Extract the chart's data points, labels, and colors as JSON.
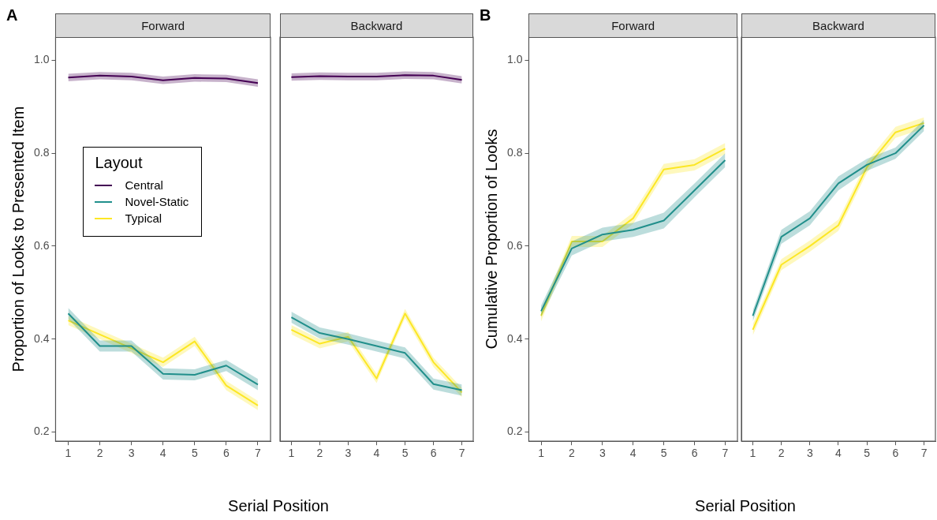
{
  "chart_data": [
    {
      "type": "line",
      "title": "Forward",
      "xlabel": "Serial Position",
      "ylabel": "Proportion of Looks to Presented Item",
      "legend_title": "Layout",
      "legend": "left",
      "annotations": [
        "A"
      ],
      "x": [
        1,
        2,
        3,
        4,
        5,
        6,
        7
      ],
      "xlim": [
        0.6,
        7.4
      ],
      "xticks": [
        1,
        2,
        3,
        4,
        5,
        6,
        7
      ],
      "ylim": [
        0.18,
        1.05
      ],
      "yticks": [
        {
          "value": 0.2,
          "label": "0.2"
        },
        {
          "value": 0.4,
          "label": "0.4"
        },
        {
          "value": 0.6,
          "label": "0.6"
        },
        {
          "value": 0.8,
          "label": "0.8"
        },
        {
          "value": 1,
          "label": "1.0"
        }
      ],
      "series": [
        {
          "name": "Central",
          "color": "#440154",
          "values": [
            0.963,
            0.967,
            0.965,
            0.957,
            0.962,
            0.961,
            0.951
          ],
          "lower": [
            0.955,
            0.959,
            0.957,
            0.949,
            0.954,
            0.953,
            0.943
          ],
          "upper": [
            0.971,
            0.975,
            0.973,
            0.965,
            0.97,
            0.969,
            0.959
          ]
        },
        {
          "name": "Novel-Static",
          "color": "#21908c",
          "values": [
            0.455,
            0.385,
            0.385,
            0.325,
            0.323,
            0.343,
            0.302
          ],
          "lower": [
            0.443,
            0.373,
            0.373,
            0.313,
            0.311,
            0.331,
            0.29
          ],
          "upper": [
            0.467,
            0.397,
            0.397,
            0.337,
            0.335,
            0.355,
            0.314
          ]
        },
        {
          "name": "Typical",
          "color": "#fde725",
          "values": [
            0.44,
            0.41,
            0.38,
            0.35,
            0.395,
            0.3,
            0.257
          ],
          "lower": [
            0.43,
            0.4,
            0.37,
            0.34,
            0.385,
            0.29,
            0.247
          ],
          "upper": [
            0.45,
            0.42,
            0.39,
            0.36,
            0.405,
            0.31,
            0.267
          ]
        }
      ]
    },
    {
      "type": "line",
      "title": "Backward",
      "tick_labels": "x",
      "x": [
        1,
        2,
        3,
        4,
        5,
        6,
        7
      ],
      "xlim": [
        0.6,
        7.4
      ],
      "xticks": [
        1,
        2,
        3,
        4,
        5,
        6,
        7
      ],
      "ylim": [
        0.18,
        1.05
      ],
      "series": [
        {
          "color": "#440154",
          "values": [
            0.964,
            0.966,
            0.965,
            0.965,
            0.968,
            0.967,
            0.958
          ],
          "lower": [
            0.956,
            0.958,
            0.957,
            0.957,
            0.96,
            0.959,
            0.95
          ],
          "upper": [
            0.972,
            0.974,
            0.973,
            0.973,
            0.976,
            0.975,
            0.966
          ]
        },
        {
          "color": "#21908c",
          "values": [
            0.447,
            0.413,
            0.4,
            0.385,
            0.37,
            0.303,
            0.29
          ],
          "lower": [
            0.435,
            0.401,
            0.388,
            0.373,
            0.358,
            0.291,
            0.278
          ],
          "upper": [
            0.459,
            0.425,
            0.412,
            0.397,
            0.382,
            0.315,
            0.302
          ]
        },
        {
          "color": "#fde725",
          "values": [
            0.42,
            0.39,
            0.405,
            0.315,
            0.455,
            0.35,
            0.285
          ],
          "lower": [
            0.41,
            0.38,
            0.395,
            0.305,
            0.445,
            0.34,
            0.275
          ],
          "upper": [
            0.43,
            0.4,
            0.415,
            0.325,
            0.465,
            0.36,
            0.295
          ]
        }
      ]
    },
    {
      "type": "line",
      "title": "Forward",
      "xlabel": "Serial Position",
      "ylabel": "Cumulative Proportion of Looks",
      "annotations": [
        "B"
      ],
      "x": [
        1,
        2,
        3,
        4,
        5,
        6,
        7
      ],
      "xlim": [
        0.6,
        7.4
      ],
      "xticks": [
        1,
        2,
        3,
        4,
        5,
        6,
        7
      ],
      "ylim": [
        0.18,
        1.05
      ],
      "yticks": [
        {
          "value": 0.2,
          "label": "0.2"
        },
        {
          "value": 0.4,
          "label": "0.4"
        },
        {
          "value": 0.6,
          "label": "0.6"
        },
        {
          "value": 0.8,
          "label": "0.8"
        },
        {
          "value": 1,
          "label": "1.0"
        }
      ],
      "series": [
        {
          "color": "#21908c",
          "values": [
            0.46,
            0.595,
            0.625,
            0.635,
            0.655,
            0.72,
            0.785
          ],
          "lower": [
            0.448,
            0.58,
            0.61,
            0.62,
            0.638,
            0.705,
            0.77
          ],
          "upper": [
            0.472,
            0.61,
            0.64,
            0.65,
            0.672,
            0.735,
            0.8
          ]
        },
        {
          "color": "#fde725",
          "values": [
            0.45,
            0.61,
            0.61,
            0.66,
            0.765,
            0.775,
            0.81
          ],
          "lower": [
            0.438,
            0.598,
            0.598,
            0.648,
            0.753,
            0.763,
            0.798
          ],
          "upper": [
            0.462,
            0.622,
            0.622,
            0.672,
            0.777,
            0.787,
            0.822
          ]
        }
      ]
    },
    {
      "type": "line",
      "title": "Backward",
      "tick_labels": "x",
      "x": [
        1,
        2,
        3,
        4,
        5,
        6,
        7
      ],
      "xlim": [
        0.6,
        7.4
      ],
      "xticks": [
        1,
        2,
        3,
        4,
        5,
        6,
        7
      ],
      "ylim": [
        0.18,
        1.05
      ],
      "series": [
        {
          "color": "#21908c",
          "values": [
            0.45,
            0.62,
            0.66,
            0.735,
            0.775,
            0.8,
            0.86
          ],
          "lower": [
            0.438,
            0.605,
            0.645,
            0.72,
            0.762,
            0.788,
            0.848
          ],
          "upper": [
            0.462,
            0.635,
            0.675,
            0.75,
            0.788,
            0.812,
            0.872
          ]
        },
        {
          "color": "#fde725",
          "values": [
            0.42,
            0.56,
            0.6,
            0.645,
            0.77,
            0.845,
            0.865
          ],
          "lower": [
            0.408,
            0.548,
            0.588,
            0.633,
            0.758,
            0.833,
            0.853
          ],
          "upper": [
            0.432,
            0.572,
            0.612,
            0.657,
            0.782,
            0.857,
            0.877
          ]
        }
      ]
    }
  ]
}
